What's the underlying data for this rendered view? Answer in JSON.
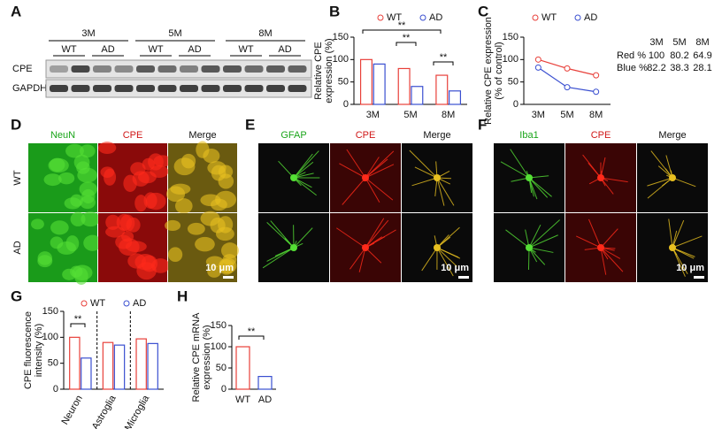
{
  "blot": {
    "panel": "A",
    "ages": [
      "3M",
      "5M",
      "8M"
    ],
    "groups": [
      "WT",
      "AD"
    ],
    "rows": [
      "CPE",
      "GAPDH"
    ]
  },
  "images": [
    {
      "panel": "D",
      "headers": [
        "NeuN",
        "CPE",
        "Merge"
      ],
      "rows": [
        "WT",
        "AD"
      ],
      "scale": "10 μm"
    },
    {
      "panel": "E",
      "headers": [
        "GFAP",
        "CPE",
        "Merge"
      ],
      "scale": "10 μm"
    },
    {
      "panel": "F",
      "headers": [
        "Iba1",
        "CPE",
        "Merge"
      ],
      "scale": "10 μm"
    }
  ],
  "chart_data": [
    {
      "type": "bar",
      "panel": "B",
      "ylabel": [
        "Relative CPE",
        "expression (%)"
      ],
      "categories": [
        "3M",
        "5M",
        "8M"
      ],
      "series": [
        {
          "name": "WT",
          "color": "#e8403a",
          "values": [
            100,
            80,
            65
          ]
        },
        {
          "name": "AD",
          "color": "#3a4fd0",
          "values": [
            90,
            40,
            30
          ]
        }
      ],
      "ylim": [
        0,
        150
      ],
      "yticks": [
        0,
        50,
        100,
        150
      ],
      "annotations": [
        "**",
        "**",
        "**"
      ]
    },
    {
      "type": "line",
      "panel": "C",
      "ylabel": [
        "Relative CPE expression",
        "(% of control)"
      ],
      "categories": [
        "3M",
        "5M",
        "8M"
      ],
      "series": [
        {
          "name": "WT",
          "color": "#e8403a",
          "values": [
            100,
            80.2,
            64.9
          ]
        },
        {
          "name": "AD",
          "color": "#3a4fd0",
          "values": [
            82.2,
            38.3,
            28.1
          ]
        }
      ],
      "ylim": [
        0,
        150
      ],
      "yticks": [
        0,
        50,
        100,
        150
      ],
      "table_row_labels": [
        "Red %",
        "Blue %"
      ]
    },
    {
      "type": "bar",
      "panel": "G",
      "ylabel": [
        "CPE fluorescence",
        "intensity (%)"
      ],
      "categories": [
        "Neuron",
        "Astroglia",
        "Microglia"
      ],
      "series": [
        {
          "name": "WT",
          "color": "#e8403a",
          "values": [
            100,
            90,
            97
          ]
        },
        {
          "name": "AD",
          "color": "#3a4fd0",
          "values": [
            60,
            85,
            88
          ]
        }
      ],
      "ylim": [
        0,
        150
      ],
      "yticks": [
        0,
        50,
        100,
        150
      ],
      "annotations": [
        "**"
      ]
    },
    {
      "type": "bar",
      "panel": "H",
      "ylabel": [
        "Relative CPE mRNA",
        "expression (%)"
      ],
      "categories": [
        "WT",
        "AD"
      ],
      "values": [
        100,
        30
      ],
      "colors": [
        "#e8403a",
        "#3a4fd0"
      ],
      "ylim": [
        0,
        150
      ],
      "yticks": [
        0,
        50,
        100,
        150
      ],
      "annotations": [
        "**"
      ]
    }
  ]
}
